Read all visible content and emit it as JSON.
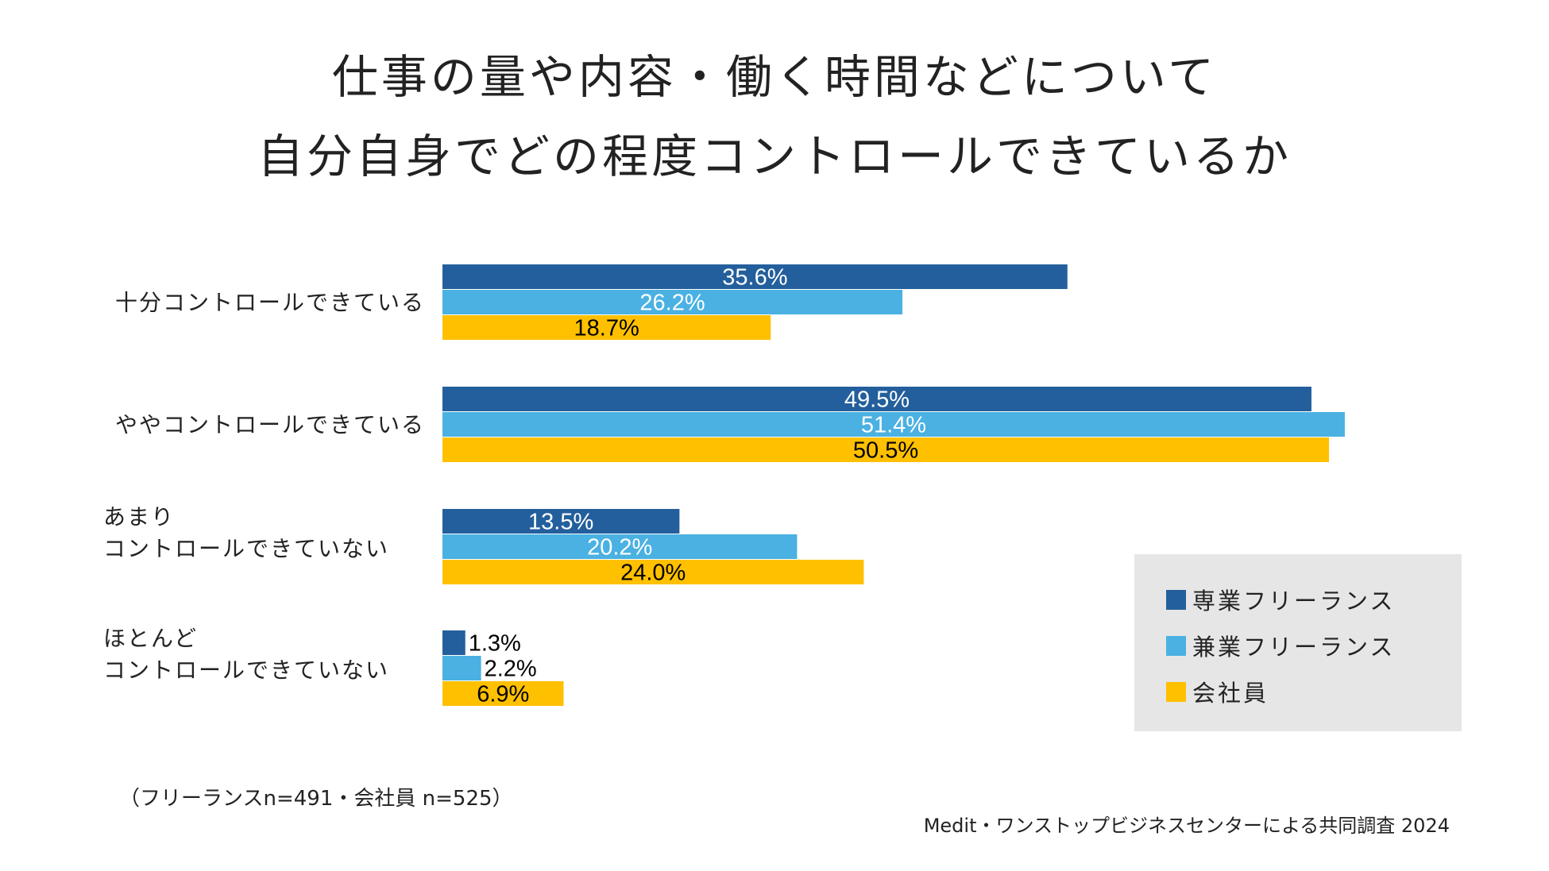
{
  "title": {
    "line1": "仕事の量や内容・働く時間などについて",
    "line2": "自分自身でどの程度コントロールできているか"
  },
  "chart_data": {
    "type": "bar",
    "orientation": "horizontal",
    "categories": [
      [
        "十分コントロールできている"
      ],
      [
        "ややコントロールできている"
      ],
      [
        "あまり",
        "コントロールできていない"
      ],
      [
        "ほとんど",
        "コントロールできていない"
      ]
    ],
    "series": [
      {
        "name": "専業フリーランス",
        "values": [
          35.6,
          49.5,
          13.5,
          1.3
        ],
        "labels": [
          "35.6%",
          "49.5%",
          "13.5%",
          "1.3%"
        ],
        "color": "#235f9c",
        "label_color_inside": "#ffffff"
      },
      {
        "name": "兼業フリーランス",
        "values": [
          26.2,
          51.4,
          20.2,
          2.2
        ],
        "labels": [
          "26.2%",
          "51.4%",
          "20.2%",
          "2.2%"
        ],
        "color": "#4ab1e2",
        "label_color_inside": "#ffffff"
      },
      {
        "name": "会社員",
        "values": [
          18.7,
          50.5,
          24.0,
          6.9
        ],
        "labels": [
          "18.7%",
          "50.5%",
          "24.0%",
          "6.9%"
        ],
        "color": "#ffc000",
        "label_color_inside": "#000000"
      }
    ],
    "unit": "%",
    "xlim": [
      0,
      52
    ],
    "grid": false,
    "legend": "bottom-right"
  },
  "legend": {
    "items": [
      {
        "label": "専業フリーランス",
        "color": "#235f9c"
      },
      {
        "label": "兼業フリーランス",
        "color": "#4ab1e2"
      },
      {
        "label": "会社員",
        "color": "#ffc000"
      }
    ]
  },
  "note": "（フリーランスn=491・会社員 n=525）",
  "credit": "Medit・ワンストップビジネスセンターによる共同調査 2024"
}
